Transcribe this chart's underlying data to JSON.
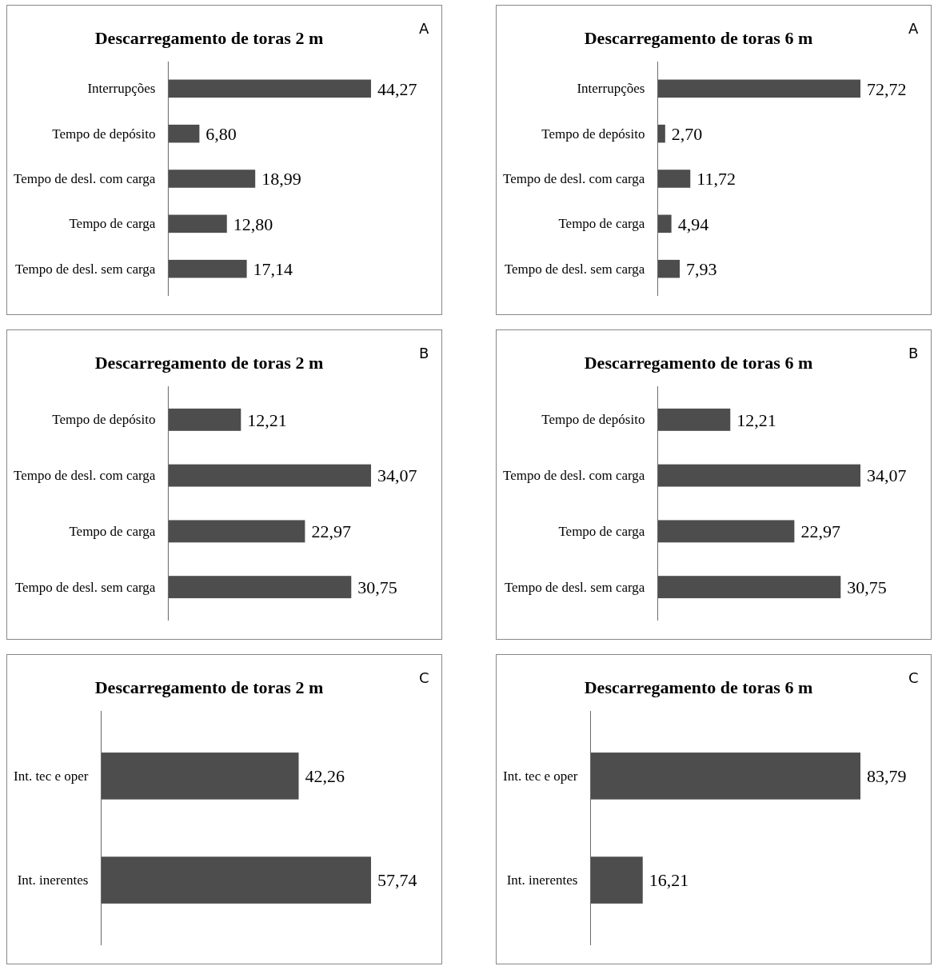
{
  "chart_data": [
    {
      "type": "bar",
      "orientation": "horizontal",
      "title": "Descarregamento de toras 2 m",
      "annotations": [
        "A"
      ],
      "color": "#4d4d4d",
      "categories": [
        "Interrupções",
        "Tempo de depósito",
        "Tempo de desl.  com carga",
        "Tempo de carga",
        "Tempo de desl.  sem carga"
      ],
      "values": [
        44.27,
        6.8,
        18.99,
        12.8,
        17.14
      ],
      "value_labels": [
        "44,27",
        "6,80",
        "18,99",
        "12,80",
        "17,14"
      ]
    },
    {
      "type": "bar",
      "orientation": "horizontal",
      "title": "Descarregamento de toras 6 m",
      "annotations": [
        "A"
      ],
      "color": "#4d4d4d",
      "categories": [
        "Interrupções",
        "Tempo de depósito",
        "Tempo de desl.  com carga",
        "Tempo de carga",
        "Tempo de desl.  sem carga"
      ],
      "values": [
        72.72,
        2.7,
        11.72,
        4.94,
        7.93
      ],
      "value_labels": [
        "72,72",
        "2,70",
        "11,72",
        "4,94",
        "7,93"
      ]
    },
    {
      "type": "bar",
      "orientation": "horizontal",
      "title": "Descarregamento de toras 2 m",
      "annotations": [
        "B"
      ],
      "color": "#4d4d4d",
      "categories": [
        "Tempo de depósito",
        "Tempo de desl.  com carga",
        "Tempo de carga",
        "Tempo de desl.  sem carga"
      ],
      "values": [
        12.21,
        34.07,
        22.97,
        30.75
      ],
      "value_labels": [
        "12,21",
        "34,07",
        "22,97",
        "30,75"
      ]
    },
    {
      "type": "bar",
      "orientation": "horizontal",
      "title": "Descarregamento de toras 6 m",
      "annotations": [
        "B"
      ],
      "color": "#4d4d4d",
      "categories": [
        "Tempo de depósito",
        "Tempo de desl.  com carga",
        "Tempo de carga",
        "Tempo de desl.  sem carga"
      ],
      "values": [
        12.21,
        34.07,
        22.97,
        30.75
      ],
      "value_labels": [
        "12,21",
        "34,07",
        "22,97",
        "30,75"
      ]
    },
    {
      "type": "bar",
      "orientation": "horizontal",
      "title": "Descarregamento de toras 2 m",
      "annotations": [
        "C"
      ],
      "color": "#4d4d4d",
      "categories": [
        "Int. tec e oper",
        "Int. inerentes"
      ],
      "values": [
        42.26,
        57.74
      ],
      "value_labels": [
        "42,26",
        "57,74"
      ]
    },
    {
      "type": "bar",
      "orientation": "horizontal",
      "title": "Descarregamento de toras 6 m",
      "annotations": [
        "C"
      ],
      "color": "#4d4d4d",
      "categories": [
        "Int. tec e oper",
        "Int. inerentes"
      ],
      "values": [
        83.79,
        16.21
      ],
      "value_labels": [
        "83,79",
        "16,21"
      ]
    }
  ]
}
